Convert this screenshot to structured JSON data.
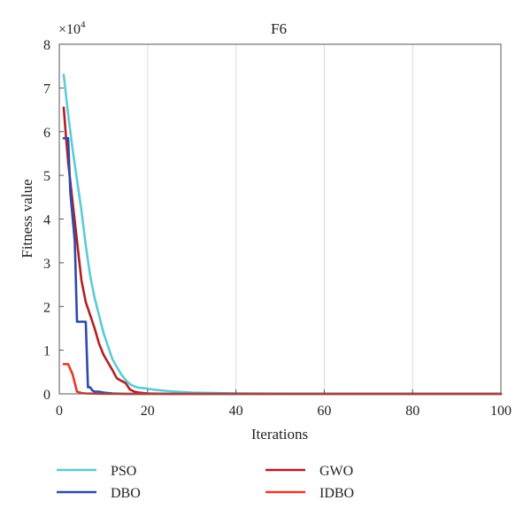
{
  "chart_data": {
    "type": "line",
    "title": "F6",
    "xlabel": "Iterations",
    "ylabel": "Fitness value",
    "y_multiplier_label": "×10",
    "y_multiplier_exponent": "4",
    "xlim": [
      0,
      100
    ],
    "ylim": [
      0,
      8
    ],
    "xticks": [
      0,
      20,
      40,
      60,
      80,
      100
    ],
    "yticks": [
      0,
      1,
      2,
      3,
      4,
      5,
      6,
      7,
      8
    ],
    "grid": true,
    "legend_position": "bottom",
    "series": [
      {
        "name": "PSO",
        "color": "#5ccbd6",
        "x": [
          1,
          2,
          3,
          4,
          5,
          6,
          7,
          8,
          9,
          10,
          11,
          12,
          13,
          14,
          15,
          16,
          17,
          18,
          20,
          22,
          25,
          30,
          40,
          60,
          80,
          100
        ],
        "y": [
          7.3,
          6.4,
          5.6,
          4.9,
          4.2,
          3.4,
          2.7,
          2.2,
          1.8,
          1.4,
          1.1,
          0.8,
          0.62,
          0.45,
          0.32,
          0.22,
          0.17,
          0.14,
          0.12,
          0.09,
          0.06,
          0.03,
          0.01,
          0.0,
          0.0,
          0.0
        ]
      },
      {
        "name": "GWO",
        "color": "#b51e22",
        "x": [
          1,
          1.5,
          2,
          3,
          4,
          5,
          6,
          7,
          8,
          9,
          10,
          11,
          12,
          13,
          14,
          15,
          16,
          17,
          18,
          20,
          25,
          40,
          100
        ],
        "y": [
          6.55,
          5.9,
          5.3,
          4.4,
          3.5,
          2.6,
          2.1,
          1.8,
          1.5,
          1.15,
          0.9,
          0.72,
          0.55,
          0.36,
          0.3,
          0.25,
          0.1,
          0.05,
          0.03,
          0.01,
          0.0,
          0.0,
          0.0
        ]
      },
      {
        "name": "DBO",
        "color": "#2e4aa8",
        "x": [
          1,
          2,
          2.5,
          3.5,
          4,
          6,
          6.5,
          7,
          7.5,
          8,
          9,
          10,
          12,
          15,
          20,
          40,
          100
        ],
        "y": [
          5.85,
          5.85,
          4.6,
          3.5,
          1.65,
          1.65,
          0.15,
          0.15,
          0.08,
          0.05,
          0.05,
          0.03,
          0.01,
          0.0,
          0.0,
          0.0,
          0.0
        ]
      },
      {
        "name": "IDBO",
        "color": "#e8392b",
        "x": [
          1,
          2,
          3,
          4,
          5,
          6,
          10,
          20,
          40,
          100
        ],
        "y": [
          0.68,
          0.68,
          0.45,
          0.05,
          0.02,
          0.01,
          0.0,
          0.0,
          0.0,
          0.0
        ]
      }
    ]
  }
}
